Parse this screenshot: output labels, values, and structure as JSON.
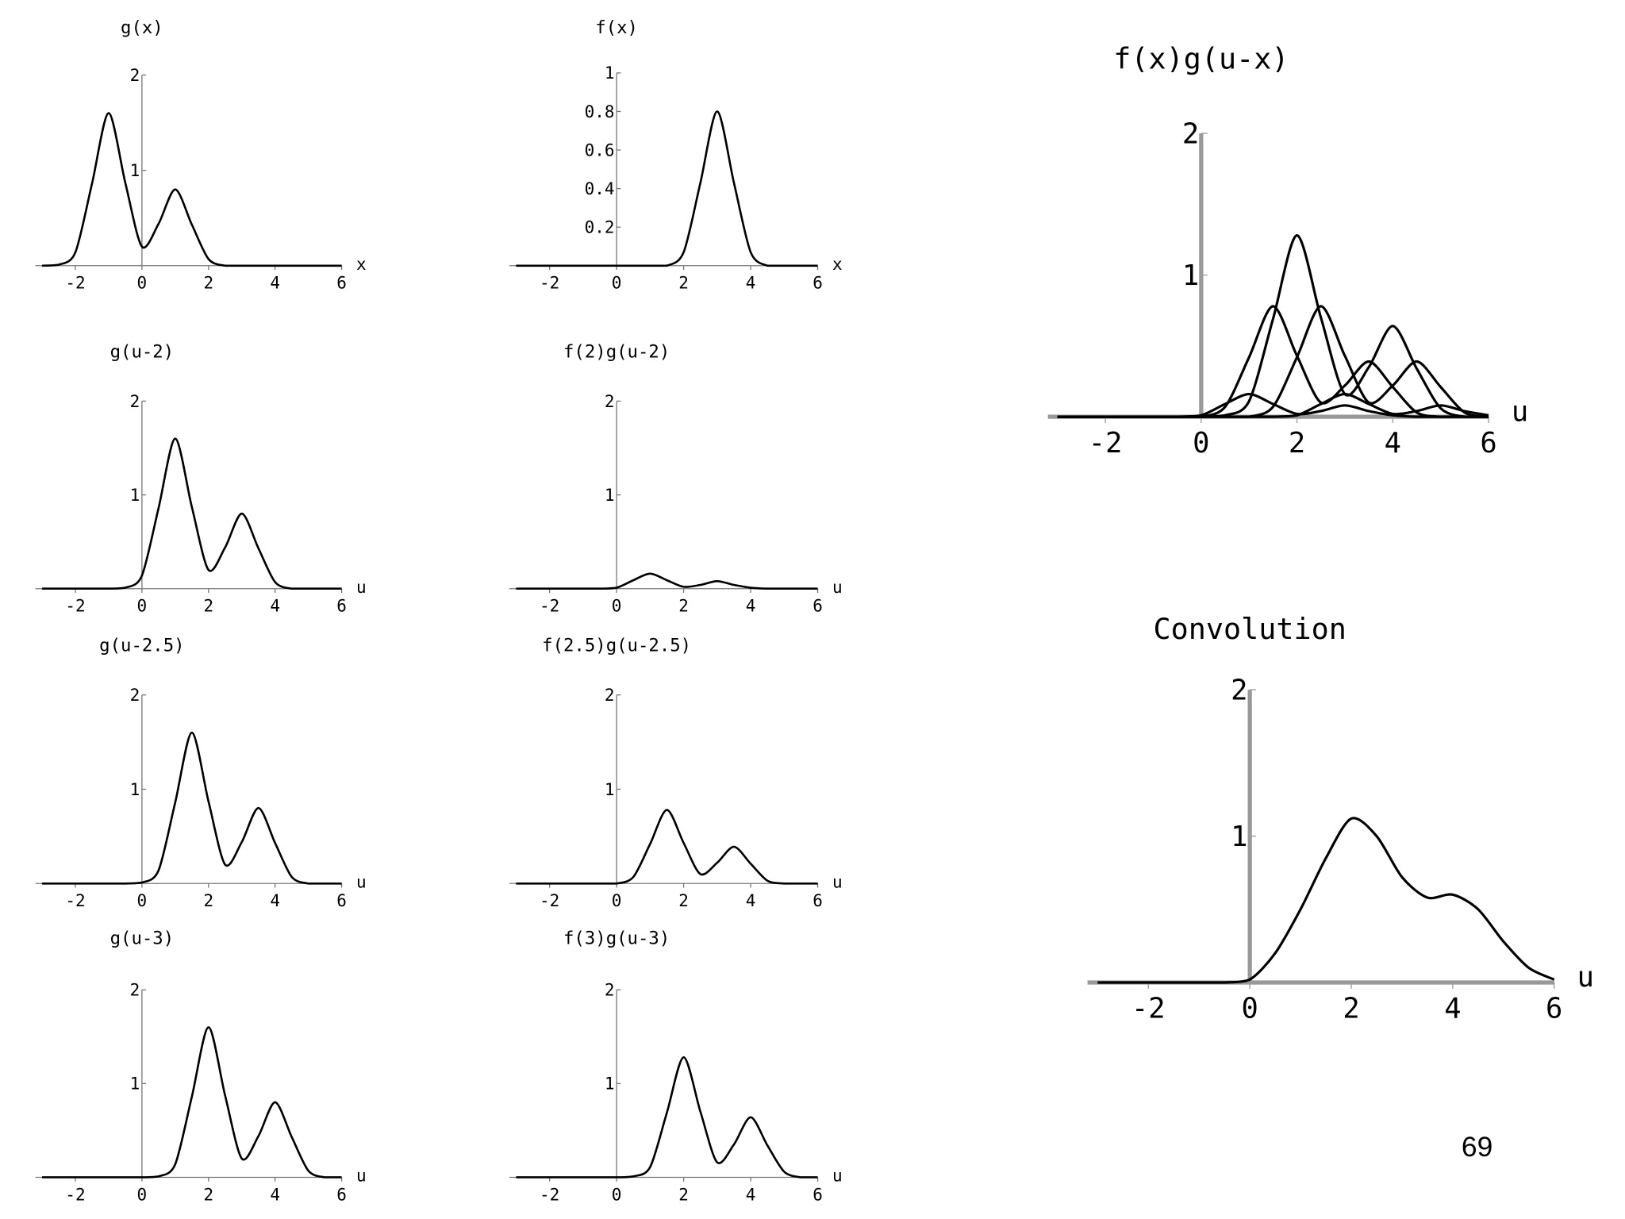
{
  "chart_data": [
    {
      "type": "line",
      "title": "g(x)",
      "x_label": "x",
      "x": [
        -3,
        -2.5,
        -2,
        -1.5,
        -1,
        -0.5,
        0,
        0.5,
        1,
        1.5,
        2,
        2.5,
        3,
        3.5,
        4,
        4.5,
        5,
        5.5,
        6
      ],
      "series": [
        {
          "color": "#000000",
          "values": [
            0,
            0.01,
            0.14,
            0.86,
            1.6,
            0.87,
            0.2,
            0.44,
            0.8,
            0.43,
            0.07,
            0,
            0,
            0,
            0,
            0,
            0,
            0,
            0
          ]
        }
      ],
      "xlim": [
        -3.2,
        6
      ],
      "ylim": [
        0,
        2
      ],
      "xticks": [
        -2,
        0,
        2,
        4,
        6
      ],
      "yticks": [
        1,
        2
      ]
    },
    {
      "type": "line",
      "title": "f(x)",
      "x_label": "x",
      "x": [
        -3,
        -2.5,
        -2,
        -1.5,
        -1,
        -0.5,
        0,
        0.5,
        1,
        1.5,
        2,
        2.5,
        3,
        3.5,
        4,
        4.5,
        5,
        5.5,
        6
      ],
      "series": [
        {
          "color": "#000000",
          "values": [
            0,
            0,
            0,
            0,
            0,
            0,
            0,
            0,
            0,
            0,
            0.07,
            0.43,
            0.8,
            0.43,
            0.07,
            0,
            0,
            0,
            0
          ]
        }
      ],
      "xlim": [
        -3.2,
        6
      ],
      "ylim": [
        0,
        1
      ],
      "xticks": [
        -2,
        0,
        2,
        4,
        6
      ],
      "yticks": [
        0.2,
        0.4,
        0.6,
        0.8,
        1
      ]
    },
    {
      "type": "line",
      "title": "g(u-2)",
      "x_label": "u",
      "x": [
        -3,
        -2.5,
        -2,
        -1.5,
        -1,
        -0.5,
        0,
        0.5,
        1,
        1.5,
        2,
        2.5,
        3,
        3.5,
        4,
        4.5,
        5,
        5.5,
        6
      ],
      "series": [
        {
          "color": "#000000",
          "values": [
            0,
            0,
            0,
            0,
            0,
            0.01,
            0.14,
            0.86,
            1.6,
            0.87,
            0.2,
            0.44,
            0.8,
            0.43,
            0.07,
            0,
            0,
            0,
            0
          ]
        }
      ],
      "xlim": [
        -3.2,
        6
      ],
      "ylim": [
        0,
        2
      ],
      "xticks": [
        -2,
        0,
        2,
        4,
        6
      ],
      "yticks": [
        1,
        2
      ]
    },
    {
      "type": "line",
      "title": "f(2)g(u-2)",
      "x_label": "u",
      "x": [
        -3,
        -2.5,
        -2,
        -1.5,
        -1,
        -0.5,
        0,
        0.5,
        1,
        1.5,
        2,
        2.5,
        3,
        3.5,
        4,
        4.5,
        5,
        5.5,
        6
      ],
      "series": [
        {
          "color": "#000000",
          "values": [
            0,
            0,
            0,
            0,
            0,
            0,
            0.01,
            0.09,
            0.16,
            0.09,
            0.02,
            0.04,
            0.08,
            0.04,
            0.01,
            0,
            0,
            0,
            0
          ]
        }
      ],
      "xlim": [
        -3.2,
        6
      ],
      "ylim": [
        0,
        2
      ],
      "xticks": [
        -2,
        0,
        2,
        4,
        6
      ],
      "yticks": [
        1,
        2
      ]
    },
    {
      "type": "line",
      "title": "g(u-2.5)",
      "x_label": "u",
      "x": [
        -3,
        -2.5,
        -2,
        -1.5,
        -1,
        -0.5,
        0,
        0.5,
        1,
        1.5,
        2,
        2.5,
        3,
        3.5,
        4,
        4.5,
        5,
        5.5,
        6
      ],
      "series": [
        {
          "color": "#000000",
          "values": [
            0,
            0,
            0,
            0,
            0,
            0,
            0.01,
            0.14,
            0.86,
            1.6,
            0.87,
            0.2,
            0.44,
            0.8,
            0.43,
            0.07,
            0,
            0,
            0
          ]
        }
      ],
      "xlim": [
        -3.2,
        6
      ],
      "ylim": [
        0,
        2
      ],
      "xticks": [
        -2,
        0,
        2,
        4,
        6
      ],
      "yticks": [
        1,
        2
      ]
    },
    {
      "type": "line",
      "title": "f(2.5)g(u-2.5)",
      "x_label": "u",
      "x": [
        -3,
        -2.5,
        -2,
        -1.5,
        -1,
        -0.5,
        0,
        0.5,
        1,
        1.5,
        2,
        2.5,
        3,
        3.5,
        4,
        4.5,
        5,
        5.5,
        6
      ],
      "series": [
        {
          "color": "#000000",
          "values": [
            0,
            0,
            0,
            0,
            0,
            0,
            0,
            0.07,
            0.42,
            0.78,
            0.43,
            0.1,
            0.22,
            0.39,
            0.21,
            0.03,
            0,
            0,
            0
          ]
        }
      ],
      "xlim": [
        -3.2,
        6
      ],
      "ylim": [
        0,
        2
      ],
      "xticks": [
        -2,
        0,
        2,
        4,
        6
      ],
      "yticks": [
        1,
        2
      ]
    },
    {
      "type": "line",
      "title": "g(u-3)",
      "x_label": "u",
      "x": [
        -3,
        -2.5,
        -2,
        -1.5,
        -1,
        -0.5,
        0,
        0.5,
        1,
        1.5,
        2,
        2.5,
        3,
        3.5,
        4,
        4.5,
        5,
        5.5,
        6
      ],
      "series": [
        {
          "color": "#000000",
          "values": [
            0,
            0,
            0,
            0,
            0,
            0,
            0,
            0.01,
            0.14,
            0.86,
            1.6,
            0.87,
            0.2,
            0.44,
            0.8,
            0.43,
            0.07,
            0,
            0
          ]
        }
      ],
      "xlim": [
        -3.2,
        6
      ],
      "ylim": [
        0,
        2
      ],
      "xticks": [
        -2,
        0,
        2,
        4,
        6
      ],
      "yticks": [
        1,
        2
      ]
    },
    {
      "type": "line",
      "title": "f(3)g(u-3)",
      "x_label": "u",
      "x": [
        -3,
        -2.5,
        -2,
        -1.5,
        -1,
        -0.5,
        0,
        0.5,
        1,
        1.5,
        2,
        2.5,
        3,
        3.5,
        4,
        4.5,
        5,
        5.5,
        6
      ],
      "series": [
        {
          "color": "#000000",
          "values": [
            0,
            0,
            0,
            0,
            0,
            0,
            0,
            0.01,
            0.11,
            0.69,
            1.28,
            0.7,
            0.16,
            0.35,
            0.64,
            0.34,
            0.06,
            0,
            0
          ]
        }
      ],
      "xlim": [
        -3.2,
        6
      ],
      "ylim": [
        0,
        2
      ],
      "xticks": [
        -2,
        0,
        2,
        4,
        6
      ],
      "yticks": [
        1,
        2
      ]
    },
    {
      "type": "line",
      "title": "f(x)g(u-x)",
      "x_label": "u",
      "x": [
        -3,
        -2.5,
        -2,
        -1.5,
        -1,
        -0.5,
        0,
        0.5,
        1,
        1.5,
        2,
        2.5,
        3,
        3.5,
        4,
        4.5,
        5,
        5.5,
        6
      ],
      "series": [
        {
          "color": "#000000",
          "values": [
            0,
            0,
            0,
            0,
            0,
            0,
            0.01,
            0.09,
            0.16,
            0.09,
            0.02,
            0.04,
            0.08,
            0.04,
            0.01,
            0,
            0,
            0,
            0
          ]
        },
        {
          "color": "#000000",
          "values": [
            0,
            0,
            0,
            0,
            0,
            0,
            0,
            0.07,
            0.42,
            0.78,
            0.43,
            0.1,
            0.22,
            0.39,
            0.21,
            0.03,
            0,
            0,
            0
          ]
        },
        {
          "color": "#000000",
          "values": [
            0,
            0,
            0,
            0,
            0,
            0,
            0,
            0.01,
            0.11,
            0.69,
            1.28,
            0.7,
            0.16,
            0.35,
            0.64,
            0.34,
            0.06,
            0,
            0
          ]
        },
        {
          "color": "#000000",
          "values": [
            0,
            0,
            0,
            0,
            0,
            0,
            0,
            0,
            0,
            0.07,
            0.42,
            0.78,
            0.43,
            0.1,
            0.22,
            0.39,
            0.21,
            0.03,
            0
          ]
        },
        {
          "color": "#000000",
          "values": [
            0,
            0,
            0,
            0,
            0,
            0,
            0,
            0,
            0,
            0,
            0.01,
            0.09,
            0.16,
            0.09,
            0.02,
            0.04,
            0.08,
            0.04,
            0.01
          ]
        }
      ],
      "xlim": [
        -3.2,
        6
      ],
      "ylim": [
        0,
        2
      ],
      "xticks": [
        -2,
        0,
        2,
        4,
        6
      ],
      "yticks": [
        1,
        2
      ]
    },
    {
      "type": "line",
      "title": "Convolution",
      "x_label": "u",
      "x": [
        -3,
        -2.5,
        -2,
        -1.5,
        -1,
        -0.5,
        0,
        0.5,
        1,
        1.5,
        2,
        2.5,
        3,
        3.5,
        4,
        4.5,
        5,
        5.5,
        6
      ],
      "series": [
        {
          "color": "#000000",
          "values": [
            0,
            0,
            0,
            0,
            0,
            0,
            0.02,
            0.2,
            0.5,
            0.85,
            1.12,
            1.0,
            0.72,
            0.58,
            0.6,
            0.5,
            0.28,
            0.1,
            0.02
          ]
        }
      ],
      "xlim": [
        -3.2,
        6
      ],
      "ylim": [
        0,
        2
      ],
      "xticks": [
        -2,
        0,
        2,
        4,
        6
      ],
      "yticks": [
        1,
        2
      ]
    }
  ],
  "page_number": "69"
}
